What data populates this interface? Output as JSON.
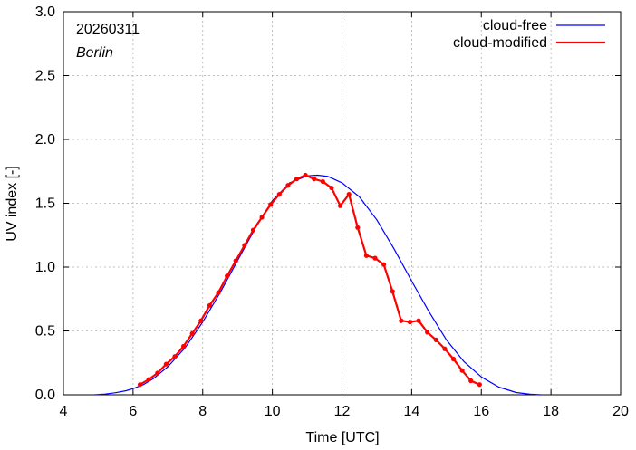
{
  "chart_data": {
    "type": "line",
    "date_label": "20260311",
    "location_label": "Berlin",
    "xlabel": "Time  [UTC]",
    "ylabel": "UV index  [-]",
    "xlim": [
      4,
      20
    ],
    "ylim": [
      0.0,
      3.0
    ],
    "x_ticks": [
      4,
      6,
      8,
      10,
      12,
      14,
      16,
      18,
      20
    ],
    "y_ticks": [
      0.0,
      0.5,
      1.0,
      1.5,
      2.0,
      2.5,
      3.0
    ],
    "y_tick_labels": [
      "0.0",
      "0.5",
      "1.0",
      "1.5",
      "2.0",
      "2.5",
      "3.0"
    ],
    "legend_position": "top-right",
    "series": [
      {
        "name": "cloud-free",
        "color": "#0000ff",
        "style": "line",
        "x": [
          4.9,
          5.2,
          5.5,
          5.8,
          6.0,
          6.3,
          6.6,
          7.0,
          7.5,
          8.0,
          8.5,
          9.0,
          9.5,
          10.0,
          10.5,
          11.0,
          11.3,
          11.6,
          12.0,
          12.5,
          13.0,
          13.5,
          14.0,
          14.5,
          15.0,
          15.5,
          16.0,
          16.5,
          17.0,
          17.4,
          17.7
        ],
        "y": [
          0.0,
          0.006,
          0.016,
          0.032,
          0.048,
          0.08,
          0.13,
          0.22,
          0.37,
          0.57,
          0.8,
          1.05,
          1.3,
          1.52,
          1.66,
          1.715,
          1.72,
          1.71,
          1.66,
          1.55,
          1.37,
          1.14,
          0.89,
          0.65,
          0.43,
          0.26,
          0.14,
          0.06,
          0.018,
          0.004,
          0.0
        ]
      },
      {
        "name": "cloud-modified",
        "color": "#ff0000",
        "style": "line+points",
        "x": [
          6.2,
          6.45,
          6.7,
          6.95,
          7.2,
          7.45,
          7.7,
          7.95,
          8.2,
          8.45,
          8.7,
          8.95,
          9.2,
          9.45,
          9.7,
          9.95,
          10.2,
          10.45,
          10.7,
          10.95,
          11.2,
          11.45,
          11.7,
          11.95,
          12.2,
          12.45,
          12.7,
          12.95,
          13.2,
          13.45,
          13.7,
          13.95,
          14.2,
          14.45,
          14.7,
          14.95,
          15.2,
          15.45,
          15.7,
          15.95
        ],
        "y": [
          0.08,
          0.12,
          0.17,
          0.24,
          0.3,
          0.38,
          0.48,
          0.58,
          0.7,
          0.8,
          0.93,
          1.05,
          1.17,
          1.29,
          1.39,
          1.49,
          1.57,
          1.64,
          1.69,
          1.72,
          1.69,
          1.67,
          1.62,
          1.48,
          1.57,
          1.31,
          1.09,
          1.07,
          1.02,
          0.81,
          0.58,
          0.57,
          0.58,
          0.49,
          0.43,
          0.36,
          0.28,
          0.19,
          0.11,
          0.08
        ]
      }
    ]
  }
}
